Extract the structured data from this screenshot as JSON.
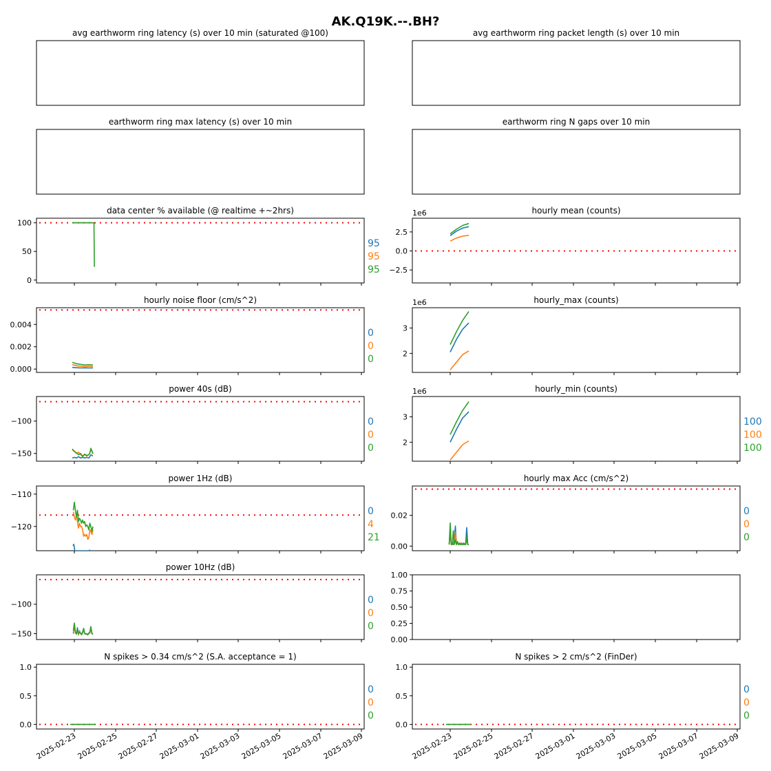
{
  "suptitle": "AK.Q19K.--.BH?",
  "colors": {
    "c0": "#1f77b4",
    "c1": "#ff7f0e",
    "c2": "#2ca02c",
    "threshold": "#ff0000"
  },
  "date_ticks": [
    "2025-02-23",
    "2025-02-25",
    "2025-02-27",
    "2025-03-01",
    "2025-03-03",
    "2025-03-05",
    "2025-03-07",
    "2025-03-09"
  ],
  "chart_data": [
    {
      "id": "latency",
      "title": "avg earthworm ring latency (s)   over 10 min (saturated @100)",
      "type": "line",
      "empty": true,
      "no_ticks": true,
      "series": []
    },
    {
      "id": "pktlen",
      "title": "avg earthworm ring packet length (s)   over 10 min",
      "type": "line",
      "empty": true,
      "no_ticks": true,
      "series": []
    },
    {
      "id": "maxlat",
      "title": "earthworm ring max latency (s)   over 10 min",
      "type": "line",
      "empty": true,
      "no_ticks": true,
      "series": []
    },
    {
      "id": "ngaps",
      "title": "earthworm ring N gaps   over 10 min",
      "type": "line",
      "empty": true,
      "no_ticks": true,
      "series": []
    },
    {
      "id": "avail",
      "title": "data center % available (@ realtime +~2hrs)",
      "type": "line",
      "xlim": [
        -0.6,
        14.3
      ],
      "ylim": [
        -5,
        108
      ],
      "yticks": [
        0,
        50,
        100
      ],
      "yticklabels": [
        "0",
        "50",
        "100"
      ],
      "threshold": 100,
      "side_values": [
        "95",
        "95",
        "95"
      ],
      "series": [
        {
          "x": [
            -0.1,
            0.2,
            0.4,
            0.6,
            0.8,
            0.9,
            0.95
          ],
          "y": [
            100,
            100,
            100,
            100,
            100,
            100,
            100
          ]
        },
        {
          "x": [
            -0.1,
            0.2,
            0.4,
            0.6,
            0.8,
            0.9,
            0.95
          ],
          "y": [
            100,
            100,
            100,
            100,
            100,
            100,
            100
          ]
        },
        {
          "x": [
            -0.1,
            0.2,
            0.4,
            0.6,
            0.8,
            0.9,
            0.95,
            0.97
          ],
          "y": [
            100,
            100,
            100,
            100,
            100,
            100,
            100,
            23
          ]
        }
      ]
    },
    {
      "id": "hmean",
      "title": "hourly mean (counts)",
      "type": "line",
      "exponent": "1e6",
      "xlim": [
        -0.6,
        14.3
      ],
      "ylim": [
        -4.2,
        4.3
      ],
      "yticks": [
        -2.5,
        0,
        2.5
      ],
      "yticklabels": [
        "−2.5",
        "0.0",
        "2.5"
      ],
      "threshold": 0,
      "series": [
        {
          "x": [
            0,
            0.3,
            0.6,
            0.9
          ],
          "y": [
            2.0,
            2.6,
            3.0,
            3.2
          ]
        },
        {
          "x": [
            0,
            0.3,
            0.6,
            0.9
          ],
          "y": [
            1.3,
            1.7,
            1.95,
            2.05
          ]
        },
        {
          "x": [
            0,
            0.3,
            0.6,
            0.9
          ],
          "y": [
            2.25,
            2.85,
            3.35,
            3.6
          ]
        }
      ]
    },
    {
      "id": "noise",
      "title": "hourly noise floor (cm/s^2)",
      "type": "line",
      "xlim": [
        -0.6,
        14.3
      ],
      "ylim": [
        -0.0003,
        0.0055
      ],
      "yticks": [
        0,
        0.002,
        0.004
      ],
      "yticklabels": [
        "0.000",
        "0.002",
        "0.004"
      ],
      "threshold": 0.0053,
      "side_values": [
        "0",
        "0",
        "0"
      ],
      "series": [
        {
          "x": [
            -0.1,
            0.1,
            0.3,
            0.5,
            0.7,
            0.9
          ],
          "y": [
            0.00015,
            0.00012,
            0.0001,
            0.00011,
            0.0001,
            0.0001
          ]
        },
        {
          "x": [
            -0.1,
            0.1,
            0.3,
            0.5,
            0.7,
            0.9
          ],
          "y": [
            0.0004,
            0.0003,
            0.00025,
            0.00022,
            0.00025,
            0.00022
          ]
        },
        {
          "x": [
            -0.1,
            0.1,
            0.3,
            0.5,
            0.7,
            0.9
          ],
          "y": [
            0.0006,
            0.00048,
            0.00042,
            0.00036,
            0.0004,
            0.00036
          ]
        }
      ]
    },
    {
      "id": "hmax",
      "title": "hourly_max (counts)",
      "type": "line",
      "exponent": "1e6",
      "xlim": [
        -0.6,
        14.3
      ],
      "ylim": [
        1.25,
        3.8
      ],
      "yticks": [
        2,
        3
      ],
      "yticklabels": [
        "2",
        "3"
      ],
      "series": [
        {
          "x": [
            0,
            0.3,
            0.6,
            0.9
          ],
          "y": [
            2.05,
            2.55,
            2.95,
            3.2
          ]
        },
        {
          "x": [
            0,
            0.3,
            0.6,
            0.9
          ],
          "y": [
            1.35,
            1.65,
            1.95,
            2.1
          ]
        },
        {
          "x": [
            0,
            0.3,
            0.6,
            0.9
          ],
          "y": [
            2.35,
            2.85,
            3.3,
            3.65
          ]
        }
      ]
    },
    {
      "id": "p40",
      "title": "power 40s (dB)",
      "type": "line",
      "xlim": [
        -0.6,
        14.3
      ],
      "ylim": [
        -162,
        -62
      ],
      "yticks": [
        -150,
        -100
      ],
      "yticklabels": [
        "−150",
        "−100"
      ],
      "threshold": -70,
      "side_values": [
        "0",
        "0",
        "0"
      ],
      "series": [
        {
          "x": [
            -0.1,
            0.0,
            0.1,
            0.2,
            0.3,
            0.4,
            0.5,
            0.6,
            0.7,
            0.75,
            0.8,
            0.9
          ],
          "y": [
            -157,
            -156,
            -157,
            -155,
            -157,
            -156,
            -157,
            -156,
            -157,
            -155,
            -152,
            -154
          ]
        },
        {
          "x": [
            -0.1,
            0.0,
            0.1,
            0.2,
            0.3,
            0.4,
            0.5,
            0.6,
            0.7,
            0.75,
            0.8,
            0.9
          ],
          "y": [
            -145,
            -146,
            -150,
            -148,
            -152,
            -153,
            -152,
            -154,
            -152,
            -150,
            -143,
            -151
          ]
        },
        {
          "x": [
            -0.1,
            0.0,
            0.1,
            0.2,
            0.3,
            0.4,
            0.5,
            0.6,
            0.7,
            0.75,
            0.8,
            0.9
          ],
          "y": [
            -143,
            -147,
            -149,
            -152,
            -150,
            -155,
            -151,
            -153,
            -152,
            -149,
            -142,
            -150
          ]
        }
      ]
    },
    {
      "id": "hmin",
      "title": "hourly_min (counts)",
      "type": "line",
      "exponent": "1e6",
      "xlim": [
        -0.6,
        14.3
      ],
      "ylim": [
        1.25,
        3.8
      ],
      "yticks": [
        2,
        3
      ],
      "yticklabels": [
        "2",
        "3"
      ],
      "side_values": [
        "100",
        "100",
        "100"
      ],
      "series": [
        {
          "x": [
            0,
            0.3,
            0.6,
            0.9
          ],
          "y": [
            2.0,
            2.5,
            2.95,
            3.2
          ]
        },
        {
          "x": [
            0,
            0.3,
            0.6,
            0.9
          ],
          "y": [
            1.3,
            1.6,
            1.9,
            2.05
          ]
        },
        {
          "x": [
            0,
            0.3,
            0.6,
            0.9
          ],
          "y": [
            2.3,
            2.8,
            3.25,
            3.6
          ]
        }
      ]
    },
    {
      "id": "p1hz",
      "title": "power 1Hz (dB)",
      "type": "line",
      "xlim": [
        -0.6,
        14.3
      ],
      "ylim": [
        -127.5,
        -107.5
      ],
      "yticks": [
        -120,
        -110
      ],
      "yticklabels": [
        "−120",
        "−110"
      ],
      "threshold": -116.5,
      "side_values": [
        "0",
        "4",
        "21"
      ],
      "series": [
        {
          "x": [
            -0.06,
            -0.03,
            0.0,
            0.02,
            0.72,
            0.75
          ],
          "y": [
            -126,
            -125.5,
            -126.5,
            -127.5,
            -127.5,
            -127.2
          ]
        },
        {
          "x": [
            -0.05,
            0.0,
            0.05,
            0.1,
            0.15,
            0.2,
            0.25,
            0.3,
            0.35,
            0.4,
            0.45,
            0.5,
            0.55,
            0.6,
            0.65,
            0.7,
            0.75,
            0.8,
            0.85,
            0.9
          ],
          "y": [
            -115.5,
            -117,
            -118,
            -116.5,
            -118.5,
            -120.5,
            -119,
            -120,
            -120,
            -121,
            -123,
            -122.5,
            -123,
            -122.5,
            -124,
            -123.5,
            -121,
            -121.5,
            -122.5,
            -121
          ]
        },
        {
          "x": [
            -0.05,
            0.0,
            0.05,
            0.1,
            0.15,
            0.2,
            0.25,
            0.3,
            0.35,
            0.4,
            0.45,
            0.5,
            0.55,
            0.6,
            0.65,
            0.7,
            0.75,
            0.8,
            0.85,
            0.9
          ],
          "y": [
            -115,
            -112.5,
            -115,
            -117,
            -115,
            -118.5,
            -117.5,
            -118,
            -119,
            -118,
            -119,
            -118.5,
            -120,
            -119.5,
            -120,
            -121,
            -119,
            -120,
            -121.5,
            -120
          ]
        }
      ]
    },
    {
      "id": "hmaxacc",
      "title": "hourly max Acc (cm/s^2)",
      "type": "line",
      "xlim": [
        -0.6,
        14.3
      ],
      "ylim": [
        -0.003,
        0.039
      ],
      "yticks": [
        0,
        0.02
      ],
      "yticklabels": [
        "0.00",
        "0.02"
      ],
      "threshold": 0.037,
      "side_values": [
        "0",
        "0",
        "0"
      ],
      "series": [
        {
          "x": [
            -0.05,
            0.0,
            0.05,
            0.1,
            0.15,
            0.2,
            0.25,
            0.3,
            0.35,
            0.4,
            0.45,
            0.5,
            0.55,
            0.6,
            0.65,
            0.7,
            0.75,
            0.8,
            0.85,
            0.9
          ],
          "y": [
            0.001,
            0.009,
            0.001,
            0.002,
            0.001,
            0.005,
            0.013,
            0.001,
            0.002,
            0.001,
            0.001,
            0.001,
            0.002,
            0.001,
            0.001,
            0.001,
            0.002,
            0.012,
            0.001,
            0.001
          ]
        },
        {
          "x": [
            -0.05,
            0.0,
            0.05,
            0.1,
            0.15,
            0.2,
            0.25,
            0.3,
            0.35,
            0.4,
            0.45,
            0.5,
            0.55,
            0.6,
            0.65,
            0.7,
            0.75,
            0.8,
            0.85,
            0.9
          ],
          "y": [
            0.001,
            0.011,
            0.001,
            0.001,
            0.002,
            0.003,
            0.009,
            0.001,
            0.002,
            0.001,
            0.001,
            0.002,
            0.001,
            0.001,
            0.002,
            0.001,
            0.001,
            0.004,
            0.001,
            0.001
          ]
        },
        {
          "x": [
            -0.05,
            0.0,
            0.05,
            0.1,
            0.15,
            0.2,
            0.25,
            0.3,
            0.35,
            0.4,
            0.45,
            0.5,
            0.55,
            0.6,
            0.65,
            0.7,
            0.75,
            0.8,
            0.85,
            0.9
          ],
          "y": [
            0.001,
            0.015,
            0.001,
            0.001,
            0.01,
            0.001,
            0.004,
            0.001,
            0.003,
            0.001,
            0.002,
            0.001,
            0.001,
            0.001,
            0.002,
            0.001,
            0.001,
            0.006,
            0.001,
            0.001
          ]
        }
      ]
    },
    {
      "id": "p10hz",
      "title": "power 10Hz (dB)",
      "type": "line",
      "xlim": [
        -0.6,
        14.3
      ],
      "ylim": [
        -160,
        -50
      ],
      "yticks": [
        -150,
        -100
      ],
      "yticklabels": [
        "−150",
        "−100"
      ],
      "threshold": -58,
      "side_values": [
        "0",
        "0",
        "0"
      ],
      "series": [
        {
          "x": [
            -0.05,
            0.0,
            0.05,
            0.1,
            0.15,
            0.2,
            0.25,
            0.3,
            0.35,
            0.4,
            0.45,
            0.5,
            0.55,
            0.6,
            0.65,
            0.7,
            0.75,
            0.8,
            0.85,
            0.9
          ],
          "y": [
            -150,
            -135,
            -148,
            -150,
            -140,
            -152,
            -145,
            -150,
            -151,
            -149,
            -142,
            -150,
            -151,
            -150,
            -152,
            -150,
            -149,
            -140,
            -150,
            -151
          ]
        },
        {
          "x": [
            -0.05,
            0.0,
            0.05,
            0.1,
            0.15,
            0.2,
            0.25,
            0.3,
            0.35,
            0.4,
            0.45,
            0.5,
            0.55,
            0.6,
            0.65,
            0.7,
            0.75,
            0.8,
            0.85,
            0.9
          ],
          "y": [
            -148,
            -138,
            -149,
            -150,
            -145,
            -151,
            -146,
            -150,
            -150,
            -148,
            -144,
            -149,
            -151,
            -150,
            -151,
            -150,
            -148,
            -143,
            -149,
            -150
          ]
        },
        {
          "x": [
            -0.05,
            0.0,
            0.05,
            0.1,
            0.15,
            0.2,
            0.25,
            0.3,
            0.35,
            0.4,
            0.45,
            0.5,
            0.55,
            0.6,
            0.65,
            0.7,
            0.75,
            0.8,
            0.85,
            0.9
          ],
          "y": [
            -145,
            -132,
            -147,
            -151,
            -142,
            -150,
            -148,
            -149,
            -152,
            -147,
            -141,
            -150,
            -150,
            -151,
            -152,
            -149,
            -147,
            -138,
            -150,
            -151
          ]
        }
      ]
    },
    {
      "id": "empty_axes",
      "title": "",
      "type": "line",
      "xlim": [
        -0.6,
        14.3
      ],
      "ylim": [
        0,
        1
      ],
      "yticks": [
        0,
        0.25,
        0.5,
        0.75,
        1.0
      ],
      "yticklabels": [
        "0.00",
        "0.25",
        "0.50",
        "0.75",
        "1.00"
      ],
      "series": []
    },
    {
      "id": "spikes_sa",
      "title": "N spikes > 0.34 cm/s^2 (S.A. acceptance = 1)",
      "type": "line",
      "xlim": [
        -0.6,
        14.3
      ],
      "ylim": [
        -0.08,
        1.05
      ],
      "yticks": [
        0,
        0.5,
        1.0
      ],
      "yticklabels": [
        "0.0",
        "0.5",
        "1.0"
      ],
      "threshold": 0,
      "side_values": [
        "0",
        "0",
        "0"
      ],
      "xticklabels": true,
      "series": [
        {
          "x": [
            -0.2,
            1.0
          ],
          "y": [
            0,
            0
          ]
        },
        {
          "x": [
            -0.2,
            1.0
          ],
          "y": [
            0,
            0
          ]
        },
        {
          "x": [
            -0.2,
            1.0
          ],
          "y": [
            0,
            0
          ]
        }
      ]
    },
    {
      "id": "spikes_finder",
      "title": "N spikes > 2 cm/s^2 (FinDer)",
      "type": "line",
      "xlim": [
        -0.6,
        14.3
      ],
      "ylim": [
        -0.08,
        1.05
      ],
      "yticks": [
        0,
        0.5,
        1.0
      ],
      "yticklabels": [
        "0.0",
        "0.5",
        "1.0"
      ],
      "threshold": 0,
      "side_values": [
        "0",
        "0",
        "0"
      ],
      "xticklabels": true,
      "series": [
        {
          "x": [
            -0.2,
            1.0
          ],
          "y": [
            0,
            0
          ]
        },
        {
          "x": [
            -0.2,
            1.0
          ],
          "y": [
            0,
            0
          ]
        },
        {
          "x": [
            -0.2,
            1.0
          ],
          "y": [
            0,
            0
          ]
        }
      ]
    }
  ]
}
